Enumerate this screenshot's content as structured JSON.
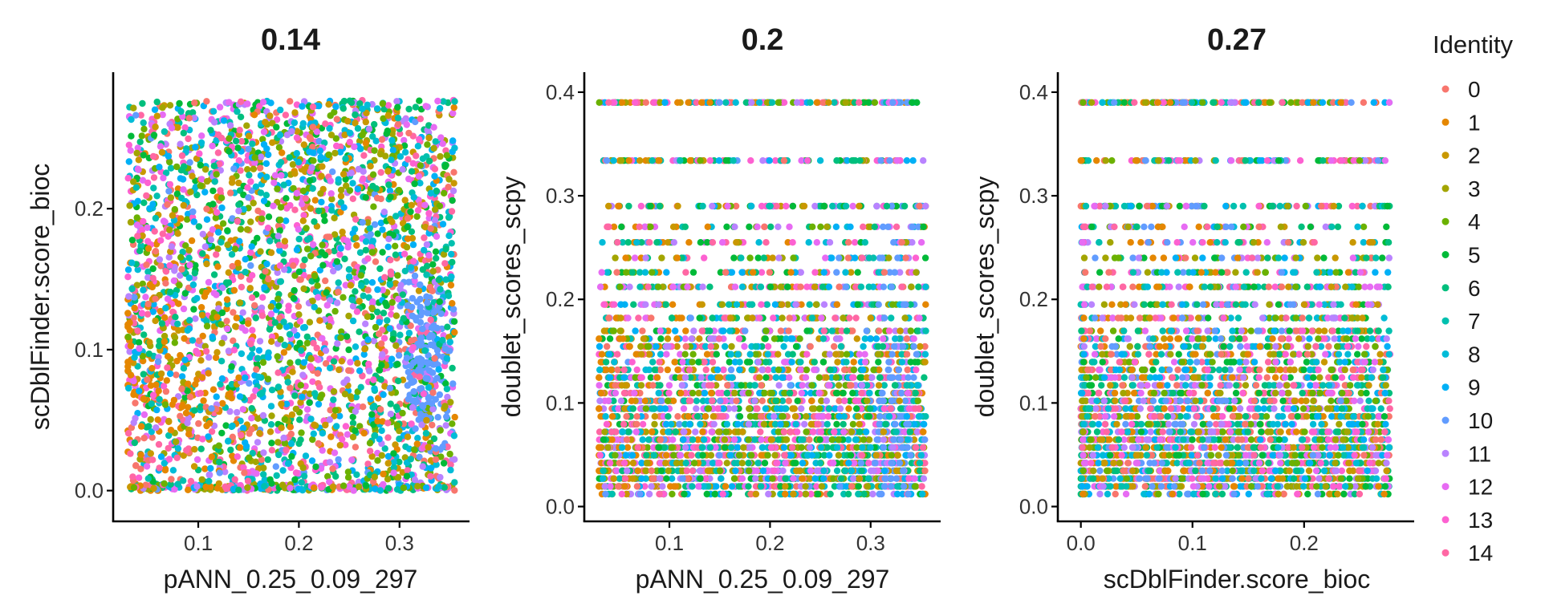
{
  "chart_data": {
    "type": "scatter",
    "legend": {
      "title": "Identity",
      "position": "right",
      "entries": [
        {
          "label": "0",
          "color": "#F8766D"
        },
        {
          "label": "1",
          "color": "#E58700"
        },
        {
          "label": "2",
          "color": "#C99800"
        },
        {
          "label": "3",
          "color": "#A3A500"
        },
        {
          "label": "4",
          "color": "#6BB100"
        },
        {
          "label": "5",
          "color": "#00BA38"
        },
        {
          "label": "6",
          "color": "#00BF7D"
        },
        {
          "label": "7",
          "color": "#00C0AF"
        },
        {
          "label": "8",
          "color": "#00BCD8"
        },
        {
          "label": "9",
          "color": "#00B0F6"
        },
        {
          "label": "10",
          "color": "#619CFF"
        },
        {
          "label": "11",
          "color": "#B983FF"
        },
        {
          "label": "12",
          "color": "#E76BF3"
        },
        {
          "label": "13",
          "color": "#FD61D1"
        },
        {
          "label": "14",
          "color": "#FF67A4"
        }
      ]
    },
    "panels": [
      {
        "title": "0.14",
        "xlabel": "pANN_0.25_0.09_297",
        "ylabel": "scDblFinder.score_bioc",
        "xlim": [
          0.025,
          0.36
        ],
        "ylim": [
          -0.015,
          0.29
        ],
        "xticks": [
          0.1,
          0.2,
          0.3
        ],
        "xtick_labels": [
          "0.1",
          "0.2",
          "0.3"
        ],
        "yticks": [
          0.0,
          0.1,
          0.2
        ],
        "ytick_labels": [
          "0.0",
          "0.1",
          "0.2"
        ],
        "point_count": 3400,
        "x_range": [
          0.03,
          0.355
        ],
        "y_range": [
          0.0,
          0.277
        ],
        "cluster_note": "cluster 10 concentrated near x 0.32-0.35, y 0.03-0.15"
      },
      {
        "title": "0.2",
        "xlabel": "pANN_0.25_0.09_297",
        "ylabel": "doublet_scores_scpy",
        "xlim": [
          0.025,
          0.36
        ],
        "ylim": [
          -0.005,
          0.41
        ],
        "xticks": [
          0.1,
          0.2,
          0.3
        ],
        "xtick_labels": [
          "0.1",
          "0.2",
          "0.3"
        ],
        "yticks": [
          0.0,
          0.1,
          0.2,
          0.3,
          0.4
        ],
        "ytick_labels": [
          "0.0",
          "0.1",
          "0.2",
          "0.3",
          "0.4"
        ],
        "point_count": 3400,
        "x_range": [
          0.03,
          0.355
        ],
        "y_range": [
          0.01,
          0.39
        ],
        "cluster_note": "values quantized into horizontal bands; max 0.39"
      },
      {
        "title": "0.27",
        "xlabel": "scDblFinder.score_bioc",
        "ylabel": "doublet_scores_scpy",
        "xlim": [
          -0.012,
          0.29
        ],
        "ylim": [
          -0.005,
          0.41
        ],
        "xticks": [
          0.0,
          0.1,
          0.2
        ],
        "xtick_labels": [
          "0.0",
          "0.1",
          "0.2"
        ],
        "yticks": [
          0.0,
          0.1,
          0.2,
          0.3,
          0.4
        ],
        "ytick_labels": [
          "0.0",
          "0.1",
          "0.2",
          "0.3",
          "0.4"
        ],
        "point_count": 3400,
        "x_range": [
          0.0,
          0.277
        ],
        "y_range": [
          0.01,
          0.39
        ],
        "cluster_note": "values quantized into horizontal bands; max 0.39"
      }
    ]
  }
}
